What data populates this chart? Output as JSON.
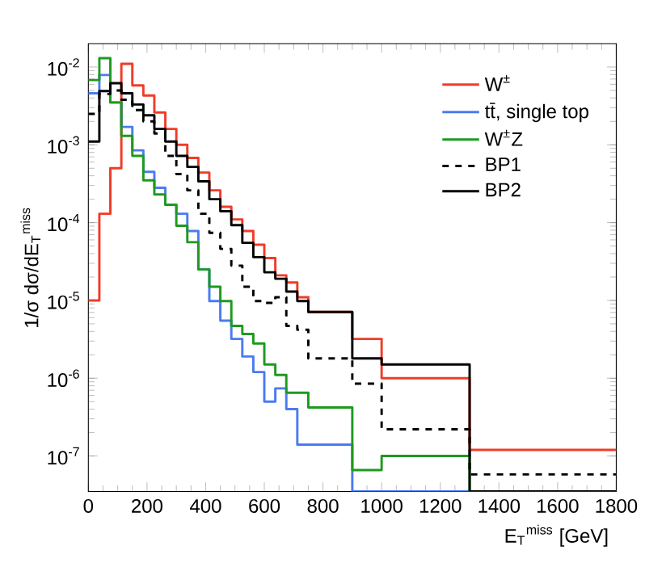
{
  "chart_data": {
    "type": "histogram",
    "xlabel": "E$_{T}$$^{miss}$ [GeV]",
    "ylabel": "1/σ dσ/dE$_{T}$$^{miss}$",
    "log": "y",
    "legend": "top right",
    "marker": "none",
    "bins": [
      0,
      37.5,
      75,
      112.5,
      150,
      187.5,
      225,
      262.5,
      300,
      337.5,
      375,
      412.5,
      450,
      487.5,
      525,
      562.5,
      600,
      637.5,
      675,
      712.5,
      750,
      900,
      1000,
      1300,
      1800
    ],
    "xlim": [
      0,
      1800
    ],
    "xticks": [
      0,
      200,
      400,
      600,
      800,
      1000,
      1200,
      1400,
      1600,
      1800
    ],
    "ylim": [
      3.5e-08,
      0.02
    ],
    "yticks": [
      {
        "value": 1e-07,
        "label": "10$^{-7}$"
      },
      {
        "value": 1e-06,
        "label": "10$^{-6}$"
      },
      {
        "value": 1e-05,
        "label": "10$^{-5}$"
      },
      {
        "value": 0.0001,
        "label": "10$^{-4}$"
      },
      {
        "value": 0.001,
        "label": "10$^{-3}$"
      },
      {
        "value": 0.01,
        "label": "10$^{-2}$"
      }
    ],
    "series": [
      {
        "name": "W$^{±}$",
        "color": "#f03c28",
        "line_style": "solid",
        "values": [
          1e-05,
          0.00013,
          0.0005,
          0.011,
          0.0058,
          0.0043,
          0.0026,
          0.0016,
          0.001,
          0.00068,
          0.00044,
          0.00026,
          0.00016,
          0.00011,
          7.8e-05,
          5.2e-05,
          3.5e-05,
          2.1e-05,
          1.7e-05,
          1.1e-05,
          7.1e-06,
          3.2e-06,
          1e-06,
          1.2e-07
        ]
      },
      {
        "name": "tt̄, single top",
        "color": "#4a7bf0",
        "line_style": "solid",
        "values": [
          0.0046,
          0.0079,
          0.0035,
          0.0017,
          0.00085,
          0.00045,
          0.00028,
          0.00017,
          0.00013,
          7.8e-05,
          2.5e-05,
          9.8e-06,
          5.5e-06,
          3.2e-06,
          1.9e-06,
          1.2e-06,
          5e-07,
          7.4e-07,
          4e-07,
          1.4e-07,
          1.4e-07,
          null,
          null,
          null
        ]
      },
      {
        "name": "W$^{±}$Z",
        "color": "#1e9a1e",
        "line_style": "solid",
        "values": [
          0.0068,
          0.013,
          0.0035,
          0.0013,
          0.00072,
          0.00035,
          0.00023,
          0.00017,
          9.1e-05,
          5.6e-05,
          2.5e-05,
          1.5e-05,
          9.8e-06,
          4.7e-06,
          3.7e-06,
          2.8e-06,
          1.5e-06,
          1.1e-06,
          6.5e-07,
          6.5e-07,
          4.2e-07,
          6.6e-08,
          1e-07,
          null
        ]
      },
      {
        "name": "BP1",
        "color": "#000000",
        "line_style": "dashed",
        "values": [
          0.0025,
          0.0045,
          0.005,
          0.0038,
          0.0028,
          0.002,
          0.0014,
          0.00072,
          0.00042,
          0.00026,
          0.00013,
          7.4e-05,
          4.6e-05,
          2.8e-05,
          1.5e-05,
          9.8e-06,
          9.3e-06,
          1.1e-05,
          4.7e-06,
          4.2e-06,
          1.8e-06,
          8.5e-07,
          2.2e-07,
          5.8e-08
        ]
      },
      {
        "name": "BP2",
        "color": "#000000",
        "line_style": "solid",
        "values": [
          0.0011,
          0.0049,
          0.0062,
          0.0046,
          0.0033,
          0.0024,
          0.0016,
          0.0011,
          0.00072,
          0.00052,
          0.00034,
          0.0002,
          0.00014,
          9.3e-05,
          5.5e-05,
          3.6e-05,
          2.3e-05,
          1.9e-05,
          1.3e-05,
          9.8e-06,
          7.1e-06,
          1.8e-06,
          1.5e-06,
          null
        ]
      }
    ]
  }
}
